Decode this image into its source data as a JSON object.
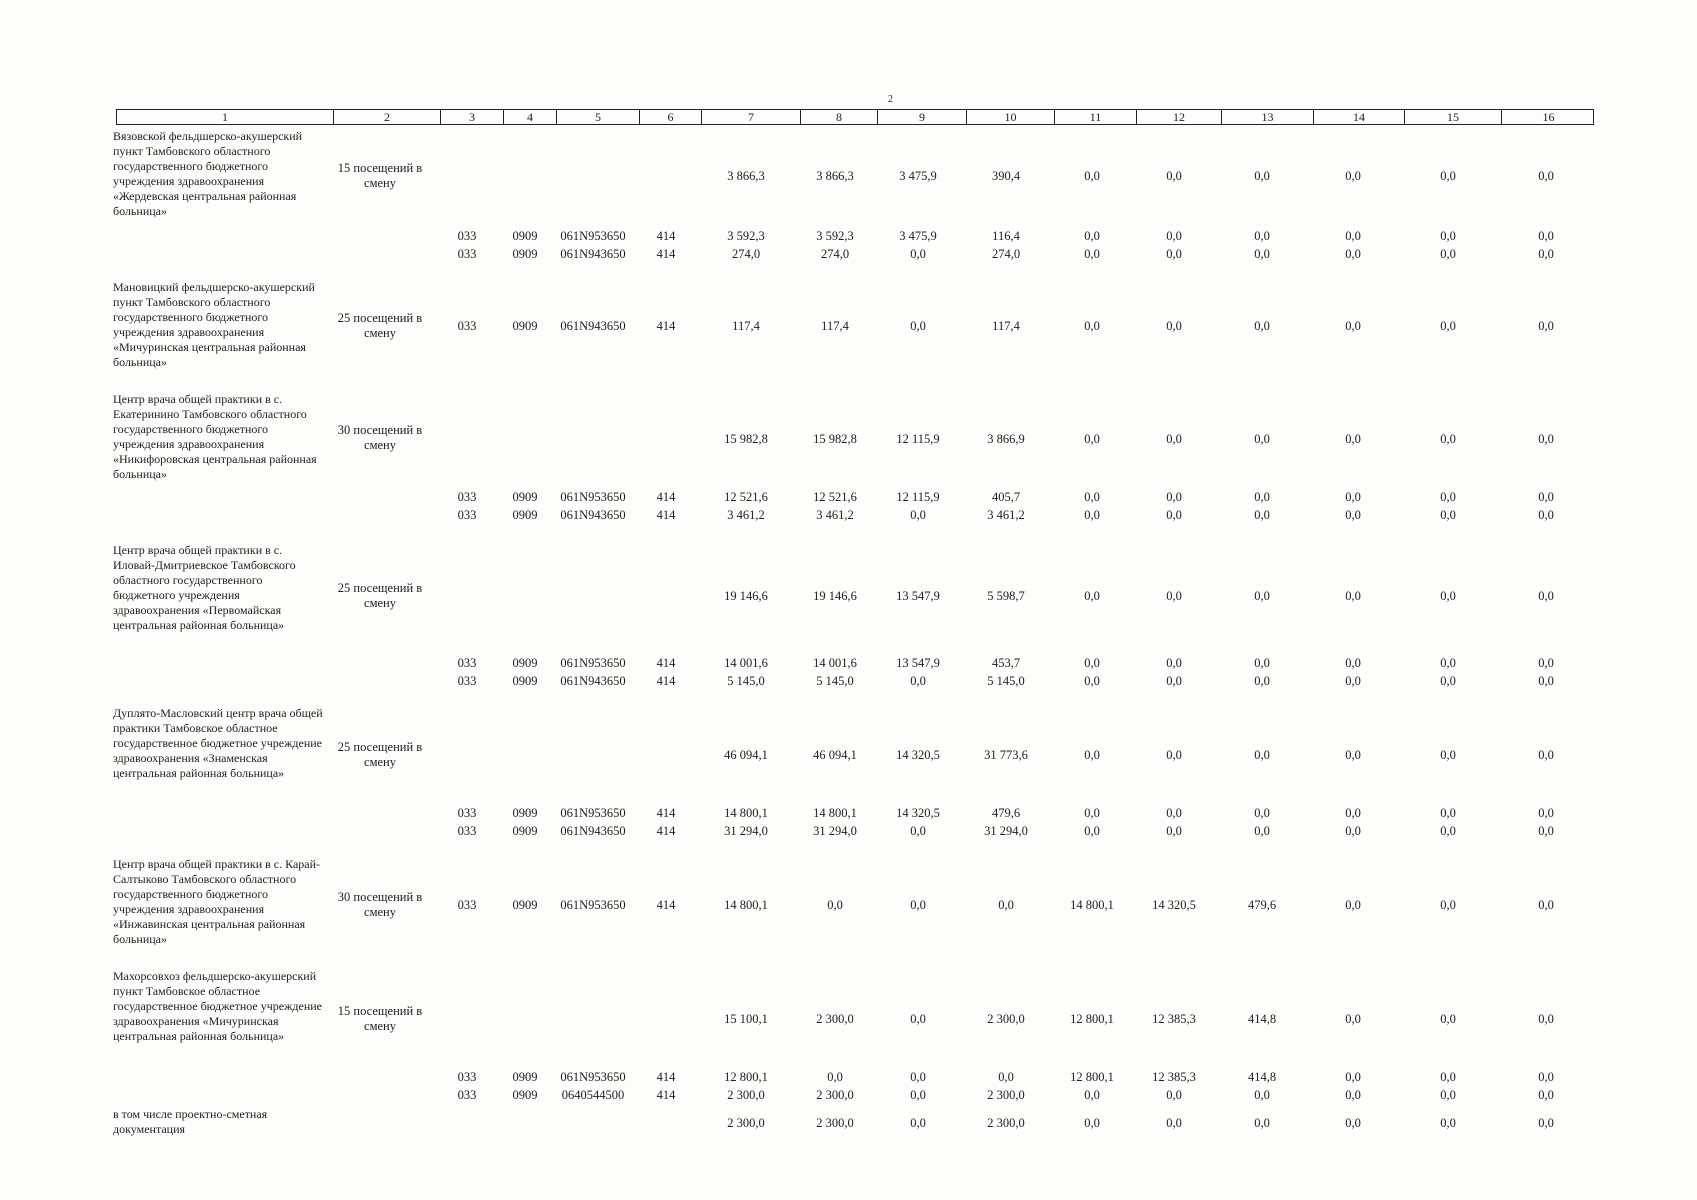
{
  "page_number": "2",
  "header_columns": [
    "1",
    "2",
    "3",
    "4",
    "5",
    "6",
    "7",
    "8",
    "9",
    "10",
    "11",
    "12",
    "13",
    "14",
    "15",
    "16"
  ],
  "blocks": [
    {
      "name": "Вязовской фельдшерско-акушерский пункт Тамбовского областного государственного бюджетного учреждения здравоохранения «Жердевская центральная районная больница»",
      "capacity": "15 посещений в смену",
      "codes": [
        "",
        "",
        "",
        ""
      ],
      "values": [
        "3 866,3",
        "3 866,3",
        "3 475,9",
        "390,4",
        "0,0",
        "0,0",
        "0,0",
        "0,0",
        "0,0",
        "0,0"
      ],
      "subrows": [
        {
          "codes": [
            "033",
            "0909",
            "061N953650",
            "414"
          ],
          "values": [
            "3 592,3",
            "3 592,3",
            "3 475,9",
            "116,4",
            "0,0",
            "0,0",
            "0,0",
            "0,0",
            "0,0",
            "0,0"
          ]
        },
        {
          "codes": [
            "033",
            "0909",
            "061N943650",
            "414"
          ],
          "values": [
            "274,0",
            "274,0",
            "0,0",
            "274,0",
            "0,0",
            "0,0",
            "0,0",
            "0,0",
            "0,0",
            "0,0"
          ]
        }
      ]
    },
    {
      "name": "Мановицкий фельдшерско-акушерский пункт Тамбовского областного государственного бюджетного учреждения здравоохранения «Мичуринская центральная районная больница»",
      "capacity": "25 посещений в смену",
      "codes": [
        "033",
        "0909",
        "061N943650",
        "414"
      ],
      "values": [
        "117,4",
        "117,4",
        "0,0",
        "117,4",
        "0,0",
        "0,0",
        "0,0",
        "0,0",
        "0,0",
        "0,0"
      ],
      "subrows": []
    },
    {
      "name": "Центр врача общей практики в с. Екатеринино Тамбовского областного государственного бюджетного учреждения здравоохранения «Никифоровская центральная районная больница»",
      "capacity": "30 посещений в смену",
      "codes": [
        "",
        "",
        "",
        ""
      ],
      "values": [
        "15 982,8",
        "15 982,8",
        "12 115,9",
        "3 866,9",
        "0,0",
        "0,0",
        "0,0",
        "0,0",
        "0,0",
        "0,0"
      ],
      "subrows": [
        {
          "codes": [
            "033",
            "0909",
            "061N953650",
            "414"
          ],
          "values": [
            "12 521,6",
            "12 521,6",
            "12 115,9",
            "405,7",
            "0,0",
            "0,0",
            "0,0",
            "0,0",
            "0,0",
            "0,0"
          ]
        },
        {
          "codes": [
            "033",
            "0909",
            "061N943650",
            "414"
          ],
          "values": [
            "3 461,2",
            "3 461,2",
            "0,0",
            "3 461,2",
            "0,0",
            "0,0",
            "0,0",
            "0,0",
            "0,0",
            "0,0"
          ]
        }
      ]
    },
    {
      "name": "Центр врача общей практики в с. Иловай-Дмитриевское Тамбовского областного государственного бюджетного учреждения здравоохранения «Первомайская центральная районная больница»",
      "capacity": "25 посещений в смену",
      "codes": [
        "",
        "",
        "",
        ""
      ],
      "values": [
        "19 146,6",
        "19 146,6",
        "13 547,9",
        "5 598,7",
        "0,0",
        "0,0",
        "0,0",
        "0,0",
        "0,0",
        "0,0"
      ],
      "subrows": [
        {
          "codes": [
            "033",
            "0909",
            "061N953650",
            "414"
          ],
          "values": [
            "14 001,6",
            "14 001,6",
            "13 547,9",
            "453,7",
            "0,0",
            "0,0",
            "0,0",
            "0,0",
            "0,0",
            "0,0"
          ]
        },
        {
          "codes": [
            "033",
            "0909",
            "061N943650",
            "414"
          ],
          "values": [
            "5 145,0",
            "5 145,0",
            "0,0",
            "5 145,0",
            "0,0",
            "0,0",
            "0,0",
            "0,0",
            "0,0",
            "0,0"
          ]
        }
      ]
    },
    {
      "name": "Дуплято-Масловский центр врача общей практики Тамбовское областное государственное бюджетное учреждение здравоохранения «Знаменская центральная районная больница»",
      "capacity": "25 посещений в смену",
      "codes": [
        "",
        "",
        "",
        ""
      ],
      "values": [
        "46 094,1",
        "46 094,1",
        "14 320,5",
        "31 773,6",
        "0,0",
        "0,0",
        "0,0",
        "0,0",
        "0,0",
        "0,0"
      ],
      "subrows": [
        {
          "codes": [
            "033",
            "0909",
            "061N953650",
            "414"
          ],
          "values": [
            "14 800,1",
            "14 800,1",
            "14 320,5",
            "479,6",
            "0,0",
            "0,0",
            "0,0",
            "0,0",
            "0,0",
            "0,0"
          ]
        },
        {
          "codes": [
            "033",
            "0909",
            "061N943650",
            "414"
          ],
          "values": [
            "31 294,0",
            "31 294,0",
            "0,0",
            "31 294,0",
            "0,0",
            "0,0",
            "0,0",
            "0,0",
            "0,0",
            "0,0"
          ]
        }
      ]
    },
    {
      "name": "Центр врача общей практики в с. Карай-Салтыково Тамбовского областного государственного бюджетного учреждения здравоохранения «Инжавинская центральная районная больница»",
      "capacity": "30 посещений в смену",
      "codes": [
        "033",
        "0909",
        "061N953650",
        "414"
      ],
      "values": [
        "14 800,1",
        "0,0",
        "0,0",
        "0,0",
        "14 800,1",
        "14 320,5",
        "479,6",
        "0,0",
        "0,0",
        "0,0"
      ],
      "subrows": []
    },
    {
      "name": "Махорсовхоз фельдшерско-акушерский пункт Тамбовское областное государственное бюджетное учреждение здравоохранения «Мичуринская центральная районная больница»",
      "capacity": "15 посещений в смену",
      "codes": [
        "",
        "",
        "",
        ""
      ],
      "values": [
        "15 100,1",
        "2 300,0",
        "0,0",
        "2 300,0",
        "12 800,1",
        "12 385,3",
        "414,8",
        "0,0",
        "0,0",
        "0,0"
      ],
      "subrows": [
        {
          "codes": [
            "033",
            "0909",
            "061N953650",
            "414"
          ],
          "values": [
            "12 800,1",
            "0,0",
            "0,0",
            "0,0",
            "12 800,1",
            "12 385,3",
            "414,8",
            "0,0",
            "0,0",
            "0,0"
          ]
        },
        {
          "codes": [
            "033",
            "0909",
            "0640544500",
            "414"
          ],
          "values": [
            "2 300,0",
            "2 300,0",
            "0,0",
            "2 300,0",
            "0,0",
            "0,0",
            "0,0",
            "0,0",
            "0,0",
            "0,0"
          ]
        }
      ]
    }
  ],
  "footer_row": {
    "name": "в том числе проектно-сметная документация",
    "values": [
      "2 300,0",
      "2 300,0",
      "0,0",
      "2 300,0",
      "0,0",
      "0,0",
      "0,0",
      "0,0",
      "0,0",
      "0,0"
    ]
  }
}
